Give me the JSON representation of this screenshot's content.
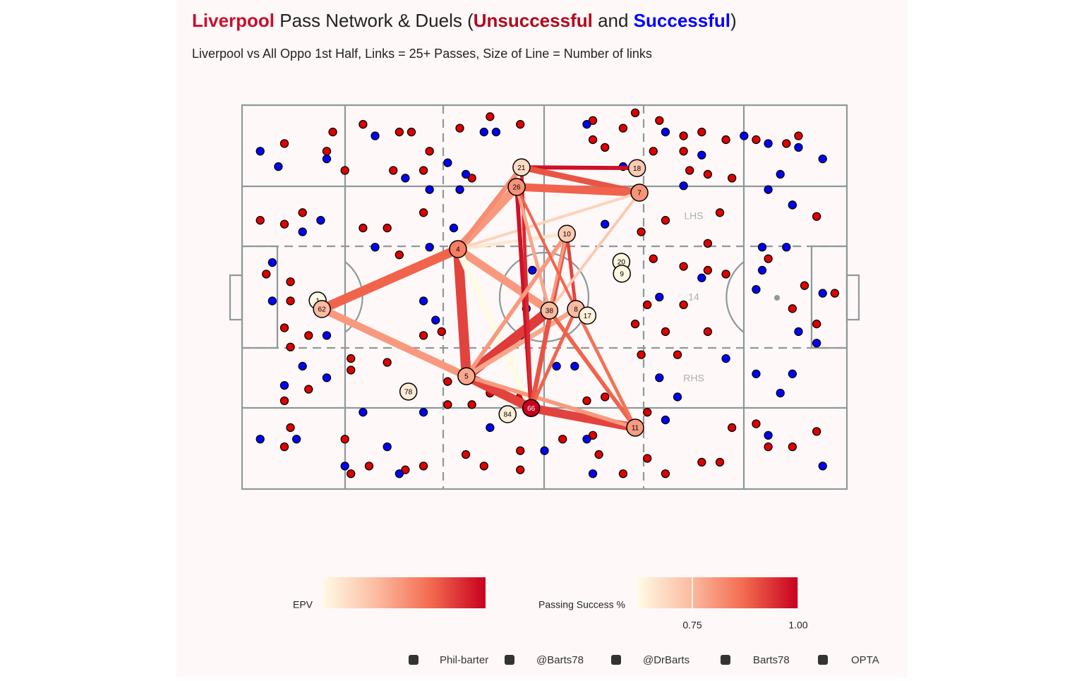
{
  "chart_data": {
    "type": "pass_network",
    "title": {
      "team": "Liverpool",
      "team_color": "#c8102e",
      "text": [
        " Pass Network & Duels (",
        " and ",
        ")"
      ]
    },
    "subtitle": "Liverpool vs All Oppo 1st Half, Links = 25+ Passes, Size of Line = Number of links",
    "xlim": [
      0,
      100
    ],
    "ylim": [
      0,
      100
    ],
    "zone_labels": [
      "LHS",
      "14",
      "RHS"
    ],
    "series": [
      {
        "name": "Unsuccessful",
        "color": "#e00000",
        "title_color": "#b2071d",
        "x": [
          7,
          14,
          15,
          20,
          26,
          28,
          31,
          36,
          41,
          46,
          58,
          63,
          65,
          69,
          73,
          76,
          80,
          85,
          90,
          92,
          3,
          10,
          7,
          20,
          24,
          26,
          30,
          17,
          25,
          30,
          38,
          58,
          60,
          68,
          73,
          74,
          77,
          79,
          81,
          91,
          95,
          4,
          8,
          8,
          7,
          8,
          11,
          18,
          18,
          24,
          30,
          33,
          34,
          34,
          38,
          41,
          46,
          7,
          11,
          8,
          7,
          17,
          18,
          21,
          27,
          30,
          37,
          40,
          46,
          46,
          53,
          58,
          59,
          63,
          67,
          70,
          76,
          79,
          81,
          85,
          87,
          91,
          95,
          93,
          91,
          95,
          98,
          87,
          77,
          80,
          73,
          72,
          67,
          65,
          70,
          77,
          66,
          67,
          60,
          57,
          66,
          70,
          77,
          68,
          73
        ],
        "y": [
          10,
          12,
          7,
          5,
          7,
          7,
          12,
          6,
          3,
          5,
          4,
          6,
          2,
          4,
          8,
          7,
          9,
          9,
          10,
          8,
          30,
          28,
          31,
          32,
          32,
          39,
          28,
          17,
          17,
          17,
          19,
          9,
          11,
          12,
          12,
          17,
          18,
          28,
          19,
          26,
          29,
          44,
          46,
          51,
          58,
          63,
          60,
          66,
          69,
          67,
          60,
          59,
          72,
          78,
          78,
          75,
          76,
          77,
          74,
          84,
          89,
          87,
          96,
          94,
          95,
          94,
          91,
          94,
          90,
          95,
          87,
          86,
          91,
          96,
          92,
          96,
          93,
          93,
          84,
          83,
          89,
          89,
          85,
          47,
          53,
          57,
          49,
          40,
          43,
          44,
          52,
          65,
          52,
          57,
          59,
          59,
          65,
          80,
          76,
          77,
          33,
          30,
          36,
          40,
          42
        ]
      },
      {
        "name": "Successful",
        "color": "#0000ff",
        "title_color": "#0000ff",
        "x": [
          3,
          6,
          14,
          22,
          27,
          31,
          34,
          37,
          35,
          36,
          40,
          42,
          57,
          63,
          70,
          76,
          83,
          87,
          92,
          96,
          89,
          87,
          91,
          13,
          10,
          22,
          31,
          30,
          32,
          48,
          47,
          46,
          52,
          55,
          69,
          76,
          86,
          86,
          90,
          85,
          96,
          95,
          92,
          85,
          91,
          89,
          80,
          69,
          72,
          70,
          87,
          96,
          73,
          60,
          10,
          7,
          14,
          30,
          20,
          41,
          50,
          57,
          58,
          26,
          24,
          17,
          3,
          9,
          5,
          5,
          14
        ],
        "y": [
          12,
          16,
          14,
          8,
          19,
          22,
          15,
          18,
          32,
          22,
          7,
          7,
          5,
          16,
          7,
          13,
          8,
          10,
          11,
          14,
          18,
          22,
          26,
          30,
          33,
          37,
          37,
          51,
          56,
          43,
          53,
          60,
          68,
          68,
          50,
          45,
          43,
          37,
          37,
          48,
          49,
          62,
          59,
          70,
          70,
          75,
          66,
          71,
          76,
          82,
          86,
          94,
          21,
          31,
          68,
          73,
          71,
          80,
          80,
          84,
          90,
          87,
          96,
          96,
          89,
          94,
          87,
          87,
          41,
          51,
          60
        ]
      }
    ],
    "players": [
      {
        "label": "21",
        "x": 46.2,
        "y": 16.2,
        "epv": 0.01
      },
      {
        "label": "18",
        "x": 65.3,
        "y": 16.4,
        "epv": 0.015
      },
      {
        "label": "26",
        "x": 45.4,
        "y": 21.3,
        "epv": 0.03
      },
      {
        "label": "7",
        "x": 65.7,
        "y": 22.8,
        "epv": 0.03
      },
      {
        "label": "10",
        "x": 53.7,
        "y": 33.5,
        "epv": 0.015
      },
      {
        "label": "4",
        "x": 35.7,
        "y": 37.5,
        "epv": 0.035
      },
      {
        "label": "20",
        "x": 62.7,
        "y": 40.8,
        "epv": 0.002
      },
      {
        "label": "9",
        "x": 62.8,
        "y": 43.9,
        "epv": 0.001
      },
      {
        "label": "1",
        "x": 12.5,
        "y": 50.9,
        "epv": 0.0
      },
      {
        "label": "62",
        "x": 13.2,
        "y": 53.1,
        "epv": 0.02
      },
      {
        "label": "38",
        "x": 50.8,
        "y": 53.5,
        "epv": 0.02
      },
      {
        "label": "8",
        "x": 55.2,
        "y": 53.1,
        "epv": 0.02
      },
      {
        "label": "17",
        "x": 57.1,
        "y": 54.8,
        "epv": 0.003
      },
      {
        "label": "5",
        "x": 37.1,
        "y": 70.6,
        "epv": 0.025
      },
      {
        "label": "78",
        "x": 27.5,
        "y": 74.6,
        "epv": 0.005
      },
      {
        "label": "84",
        "x": 43.9,
        "y": 80.5,
        "epv": 0.004
      },
      {
        "label": "66",
        "x": 47.8,
        "y": 78.9,
        "epv": 0.06
      },
      {
        "label": "11",
        "x": 65.0,
        "y": 84.0,
        "epv": 0.028
      }
    ],
    "links": [
      {
        "source": 0,
        "target": 1,
        "passes": 40,
        "success": 0.98
      },
      {
        "source": 0,
        "target": 3,
        "passes": 55,
        "success": 0.9
      },
      {
        "source": 2,
        "target": 3,
        "passes": 70,
        "success": 0.88
      },
      {
        "source": 2,
        "target": 5,
        "passes": 75,
        "success": 0.8
      },
      {
        "source": 0,
        "target": 5,
        "passes": 45,
        "success": 0.82
      },
      {
        "source": 5,
        "target": 9,
        "passes": 80,
        "success": 0.88
      },
      {
        "source": 9,
        "target": 13,
        "passes": 65,
        "success": 0.8
      },
      {
        "source": 5,
        "target": 13,
        "passes": 85,
        "success": 0.92
      },
      {
        "source": 5,
        "target": 4,
        "passes": 35,
        "success": 0.66
      },
      {
        "source": 3,
        "target": 5,
        "passes": 30,
        "success": 0.7
      },
      {
        "source": 5,
        "target": 10,
        "passes": 70,
        "success": 0.8
      },
      {
        "source": 5,
        "target": 16,
        "passes": 60,
        "success": 0.62
      },
      {
        "source": 13,
        "target": 10,
        "passes": 85,
        "success": 0.93
      },
      {
        "source": 13,
        "target": 11,
        "passes": 45,
        "success": 0.78
      },
      {
        "source": 13,
        "target": 16,
        "passes": 80,
        "success": 0.92
      },
      {
        "source": 16,
        "target": 17,
        "passes": 75,
        "success": 0.92
      },
      {
        "source": 13,
        "target": 17,
        "passes": 40,
        "success": 0.8
      },
      {
        "source": 2,
        "target": 16,
        "passes": 40,
        "success": 0.98
      },
      {
        "source": 0,
        "target": 16,
        "passes": 35,
        "success": 0.95
      },
      {
        "source": 2,
        "target": 10,
        "passes": 35,
        "success": 0.78
      },
      {
        "source": 4,
        "target": 16,
        "passes": 45,
        "success": 0.9
      },
      {
        "source": 4,
        "target": 13,
        "passes": 40,
        "success": 0.8
      },
      {
        "source": 10,
        "target": 17,
        "passes": 40,
        "success": 0.88
      },
      {
        "source": 11,
        "target": 17,
        "passes": 35,
        "success": 0.86
      },
      {
        "source": 11,
        "target": 4,
        "passes": 35,
        "success": 0.92
      },
      {
        "source": 3,
        "target": 10,
        "passes": 30,
        "success": 0.72
      },
      {
        "source": 10,
        "target": 4,
        "passes": 30,
        "success": 0.8
      },
      {
        "source": 2,
        "target": 11,
        "passes": 30,
        "success": 0.88
      },
      {
        "source": 16,
        "target": 11,
        "passes": 35,
        "success": 0.88
      }
    ],
    "color_stops": [
      "#fffbe6",
      "#fcbba1",
      "#f26a4f",
      "#c8001e"
    ],
    "epv_legend": {
      "label": "EPV",
      "lim": [
        0,
        0.06
      ]
    },
    "success_legend": {
      "label": "Passing Success %",
      "lim": [
        0.62,
        1.0
      ],
      "ticks": [
        0.75,
        {
          "value": 1.0,
          "label": "1.00"
        }
      ]
    },
    "footer": [
      "Phil-barter",
      "@Barts78",
      "@DrBarts",
      "Barts78",
      "OPTA"
    ]
  }
}
